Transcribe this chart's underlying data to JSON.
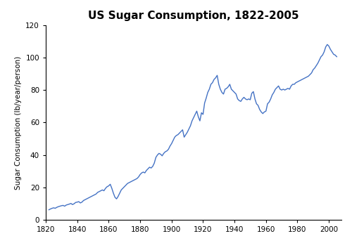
{
  "title": "US Sugar Consumption, 1822-2005",
  "xlabel": "",
  "ylabel": "Sugar Consumption (lb/year/person)",
  "line_color": "#4472C4",
  "line_width": 1.0,
  "xlim": [
    1820,
    2008
  ],
  "ylim": [
    0,
    120
  ],
  "xticks": [
    1820,
    1840,
    1860,
    1880,
    1900,
    1920,
    1940,
    1960,
    1980,
    2000
  ],
  "yticks": [
    0,
    20,
    40,
    60,
    80,
    100,
    120
  ],
  "background_color": "#ffffff",
  "years": [
    1822,
    1823,
    1824,
    1825,
    1826,
    1827,
    1828,
    1829,
    1830,
    1831,
    1832,
    1833,
    1834,
    1835,
    1836,
    1837,
    1838,
    1839,
    1840,
    1841,
    1842,
    1843,
    1844,
    1845,
    1846,
    1847,
    1848,
    1849,
    1850,
    1851,
    1852,
    1853,
    1854,
    1855,
    1856,
    1857,
    1858,
    1859,
    1860,
    1861,
    1862,
    1863,
    1864,
    1865,
    1866,
    1867,
    1868,
    1869,
    1870,
    1871,
    1872,
    1873,
    1874,
    1875,
    1876,
    1877,
    1878,
    1879,
    1880,
    1881,
    1882,
    1883,
    1884,
    1885,
    1886,
    1887,
    1888,
    1889,
    1890,
    1891,
    1892,
    1893,
    1894,
    1895,
    1896,
    1897,
    1898,
    1899,
    1900,
    1901,
    1902,
    1903,
    1904,
    1905,
    1906,
    1907,
    1908,
    1909,
    1910,
    1911,
    1912,
    1913,
    1914,
    1915,
    1916,
    1917,
    1918,
    1919,
    1920,
    1921,
    1922,
    1923,
    1924,
    1925,
    1926,
    1927,
    1928,
    1929,
    1930,
    1931,
    1932,
    1933,
    1934,
    1935,
    1936,
    1937,
    1938,
    1939,
    1940,
    1941,
    1942,
    1943,
    1944,
    1945,
    1946,
    1947,
    1948,
    1949,
    1950,
    1951,
    1952,
    1953,
    1954,
    1955,
    1956,
    1957,
    1958,
    1959,
    1960,
    1961,
    1962,
    1963,
    1964,
    1965,
    1966,
    1967,
    1968,
    1969,
    1970,
    1971,
    1972,
    1973,
    1974,
    1975,
    1976,
    1977,
    1978,
    1979,
    1980,
    1981,
    1982,
    1983,
    1984,
    1985,
    1986,
    1987,
    1988,
    1989,
    1990,
    1991,
    1992,
    1993,
    1994,
    1995,
    1996,
    1997,
    1998,
    1999,
    2000,
    2001,
    2002,
    2003,
    2004,
    2005
  ],
  "values": [
    6.3,
    6.8,
    7.2,
    7.5,
    7.2,
    7.8,
    8.2,
    8.5,
    8.8,
    9.0,
    8.5,
    9.2,
    9.5,
    9.8,
    10.2,
    9.5,
    10.0,
    10.8,
    11.0,
    11.3,
    10.5,
    11.0,
    12.0,
    12.5,
    13.0,
    13.5,
    14.0,
    14.5,
    15.0,
    15.5,
    16.0,
    17.0,
    17.5,
    18.0,
    18.5,
    18.0,
    19.5,
    20.5,
    21.0,
    22.0,
    19.5,
    16.5,
    14.0,
    13.0,
    14.5,
    16.5,
    18.5,
    19.5,
    20.5,
    21.5,
    22.5,
    23.0,
    23.5,
    24.0,
    24.5,
    25.0,
    25.5,
    26.5,
    28.0,
    29.0,
    29.5,
    29.0,
    30.5,
    31.5,
    32.5,
    32.0,
    33.0,
    35.0,
    38.5,
    40.0,
    41.0,
    40.5,
    39.5,
    41.0,
    42.0,
    42.5,
    43.5,
    45.5,
    47.0,
    49.0,
    51.0,
    52.0,
    52.5,
    53.5,
    54.5,
    55.5,
    51.0,
    52.5,
    54.0,
    56.0,
    58.0,
    61.0,
    63.0,
    65.0,
    67.0,
    63.5,
    61.0,
    66.0,
    65.0,
    72.0,
    75.0,
    78.5,
    80.5,
    83.5,
    84.5,
    86.5,
    87.5,
    89.0,
    83.5,
    80.5,
    78.5,
    77.5,
    80.5,
    81.0,
    82.0,
    83.5,
    80.5,
    79.5,
    78.5,
    77.5,
    74.5,
    73.5,
    73.0,
    74.5,
    75.5,
    74.5,
    74.0,
    74.5,
    74.0,
    78.0,
    79.0,
    74.5,
    71.5,
    70.5,
    68.0,
    66.5,
    65.5,
    66.5,
    67.0,
    71.5,
    72.5,
    74.5,
    77.0,
    78.5,
    80.5,
    81.5,
    82.5,
    80.5,
    80.0,
    80.5,
    80.0,
    80.5,
    81.0,
    80.5,
    82.5,
    83.5,
    83.5,
    84.5,
    85.0,
    85.5,
    86.0,
    86.5,
    87.0,
    87.5,
    88.0,
    88.5,
    89.5,
    90.5,
    92.5,
    93.5,
    95.0,
    96.5,
    98.5,
    100.5,
    101.5,
    103.5,
    106.5,
    108.0,
    107.0,
    105.0,
    103.5,
    102.0,
    101.5,
    100.5
  ]
}
